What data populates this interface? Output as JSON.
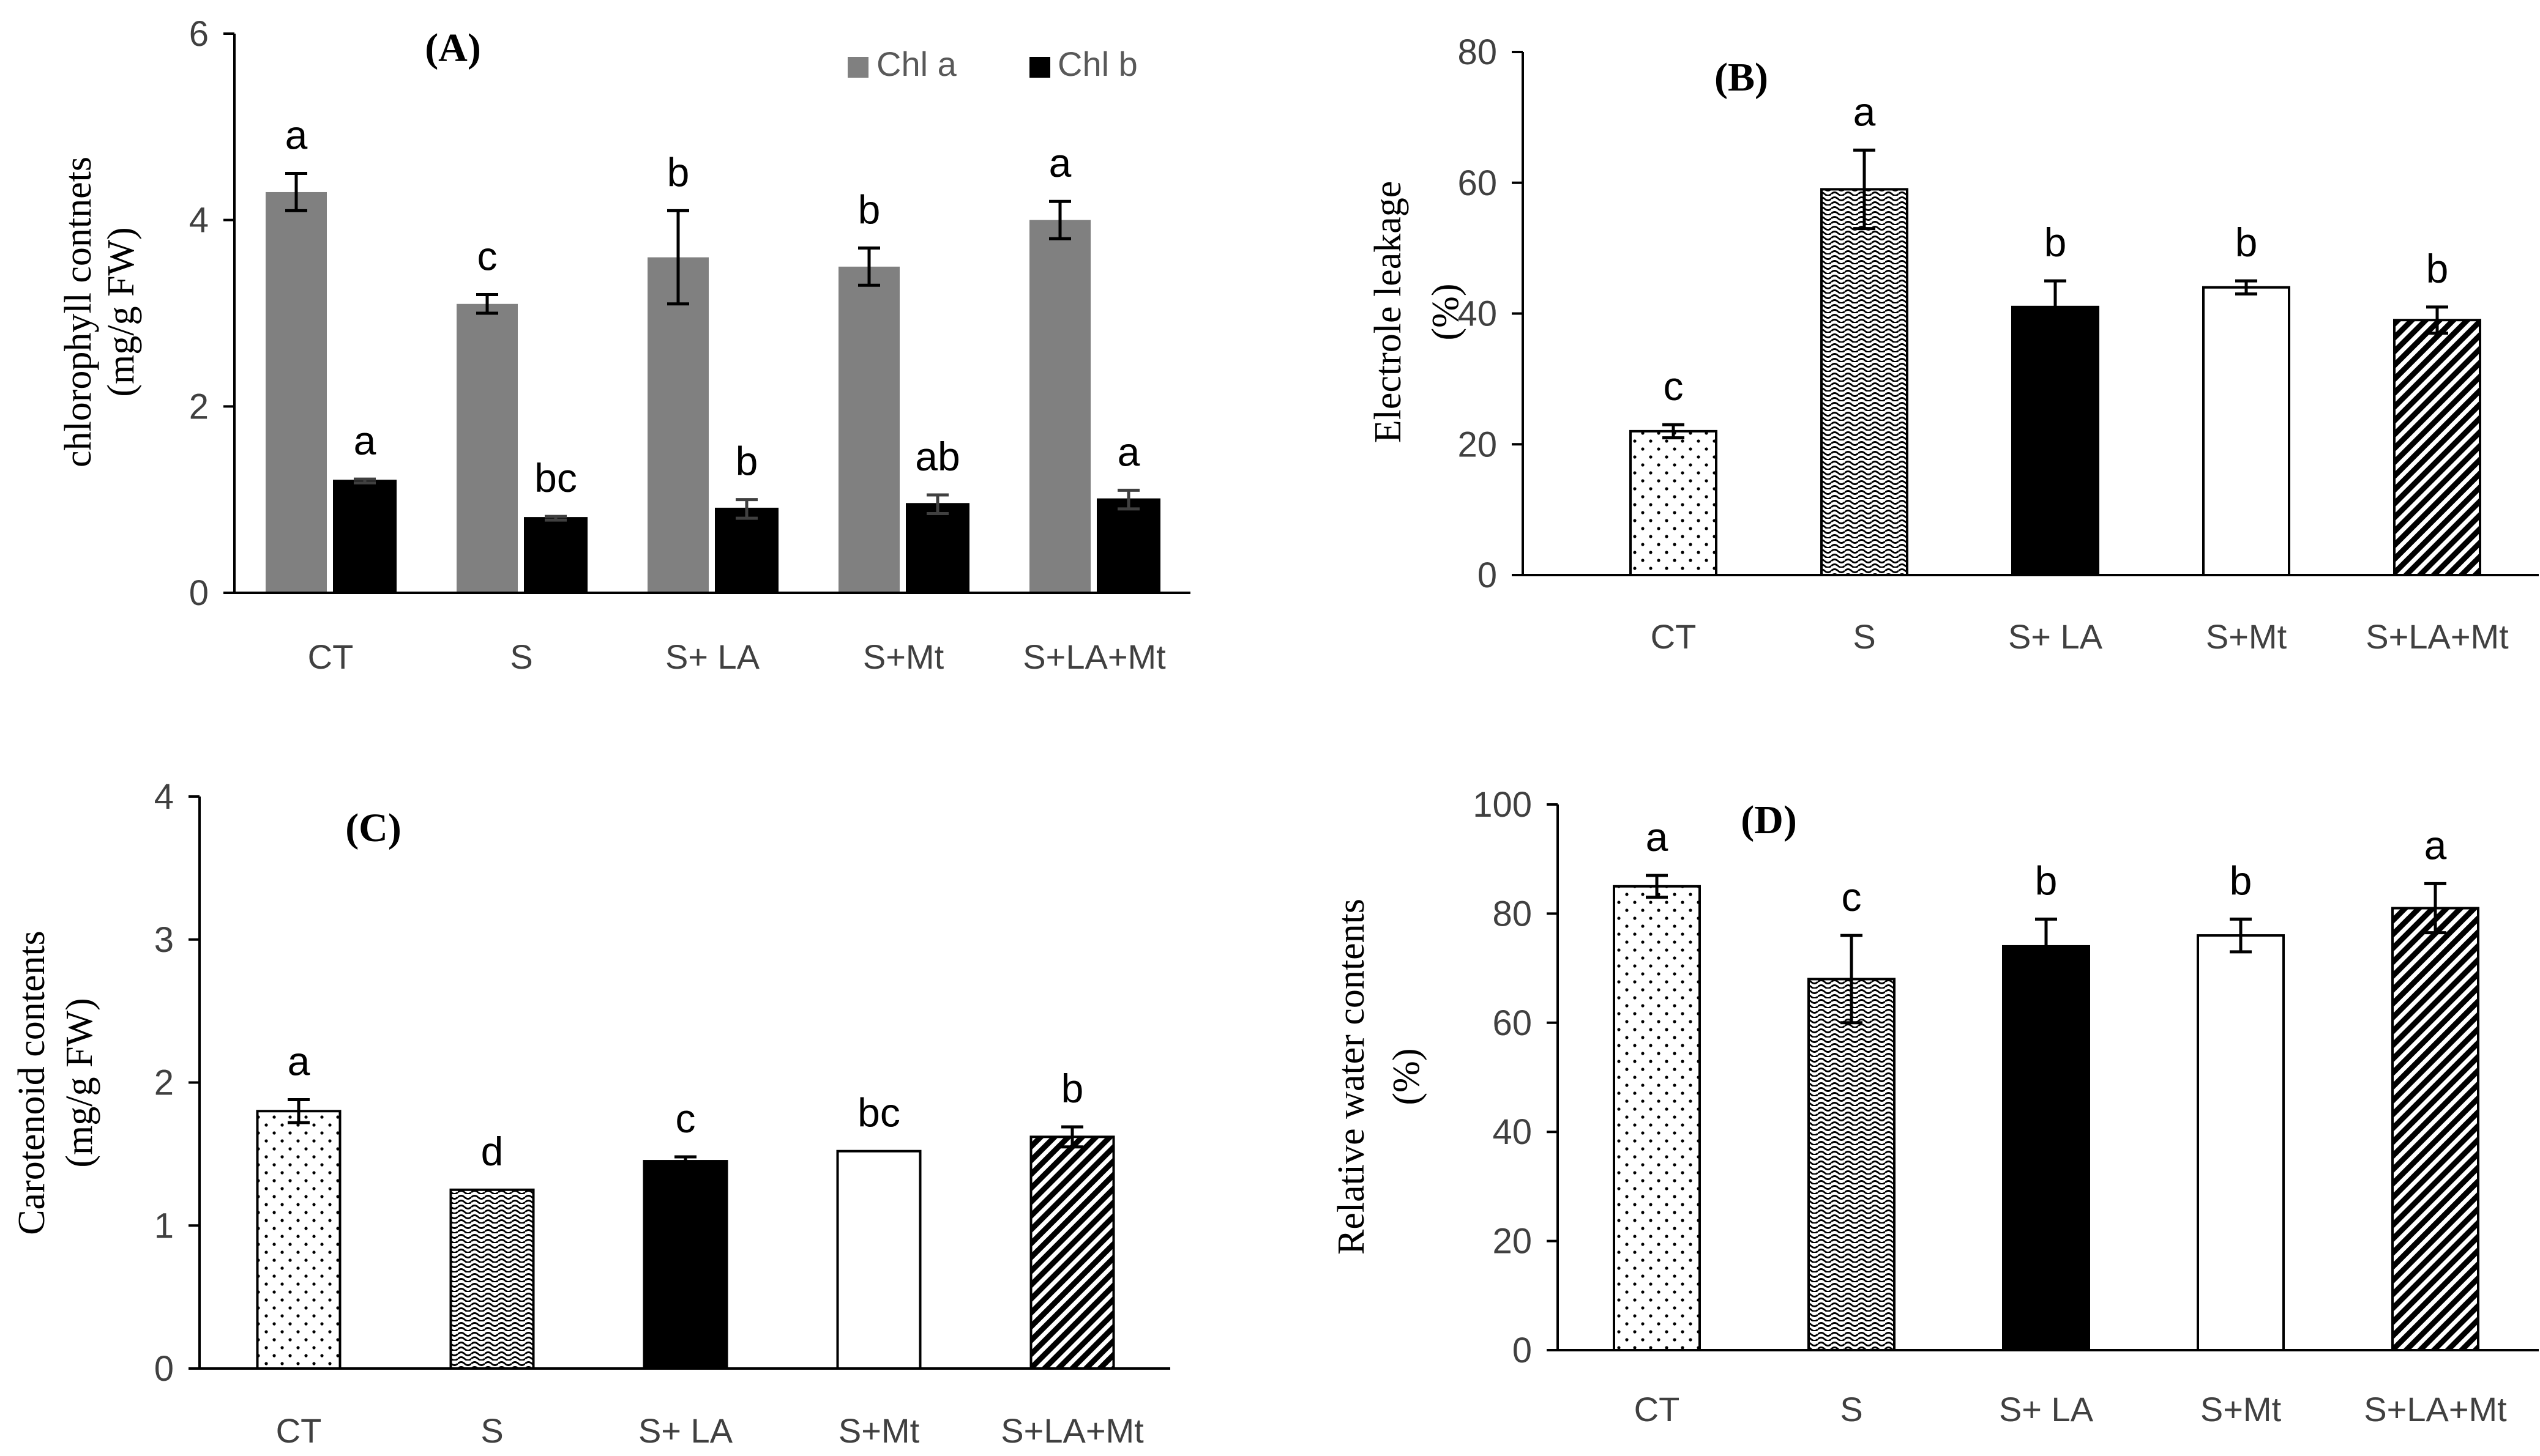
{
  "chart_data": [
    {
      "panel": "(A)",
      "type": "bar",
      "ylabel_lines": [
        "chlorophyll contnets",
        "(mg/g FW)"
      ],
      "xlabel": "",
      "ylim": [
        0,
        6
      ],
      "yticks": [
        0,
        2,
        4,
        6
      ],
      "categories": [
        "CT",
        "S",
        "S+ LA",
        "S+Mt",
        "S+LA+Mt"
      ],
      "series": [
        {
          "name": "Chl a",
          "color": "#808080",
          "pattern": "solid",
          "values": [
            4.3,
            3.1,
            3.6,
            3.5,
            4.0
          ],
          "errors": [
            0.2,
            0.1,
            0.5,
            0.2,
            0.2
          ],
          "letters": [
            "a",
            "c",
            "b",
            "b",
            "a"
          ]
        },
        {
          "name": "Chl b",
          "color": "#000000",
          "pattern": "solid",
          "values": [
            1.2,
            0.8,
            0.9,
            0.95,
            1.0
          ],
          "errors": [
            0.02,
            0.02,
            0.1,
            0.1,
            0.1
          ],
          "letters": [
            "a",
            "bc",
            "b",
            "ab",
            "a"
          ]
        }
      ],
      "legend": "top-right"
    },
    {
      "panel": "(B)",
      "type": "bar",
      "ylabel_lines": [
        "Electrole leakage",
        "(%)"
      ],
      "xlabel": "",
      "ylim": [
        0,
        80
      ],
      "yticks": [
        0,
        20,
        40,
        60,
        80
      ],
      "categories": [
        "CT",
        "S",
        "S+ LA",
        "S+Mt",
        "S+LA+Mt"
      ],
      "values": [
        22,
        59,
        41,
        44,
        39
      ],
      "errors": [
        1,
        6,
        4,
        1,
        2
      ],
      "letters": [
        "c",
        "a",
        "b",
        "b",
        "b"
      ],
      "patterns": [
        "dots",
        "waves",
        "black",
        "white",
        "hatch"
      ]
    },
    {
      "panel": "(C)",
      "type": "bar",
      "ylabel_lines": [
        "Carotenoid contents",
        "(mg/g FW)"
      ],
      "xlabel": "",
      "ylim": [
        0,
        4
      ],
      "yticks": [
        0,
        1,
        2,
        3,
        4
      ],
      "categories": [
        "CT",
        "S",
        "S+ LA",
        "S+Mt",
        "S+LA+Mt"
      ],
      "values": [
        1.8,
        1.25,
        1.45,
        1.52,
        1.62
      ],
      "errors": [
        0.08,
        0.0,
        0.03,
        0.0,
        0.07
      ],
      "letters": [
        "a",
        "d",
        "c",
        "bc",
        "b"
      ],
      "patterns": [
        "dots",
        "waves",
        "black",
        "white",
        "hatch"
      ]
    },
    {
      "panel": "(D)",
      "type": "bar",
      "ylabel_lines": [
        "Relative water contents",
        "(%)"
      ],
      "xlabel": "",
      "ylim": [
        0,
        100
      ],
      "yticks": [
        0,
        20,
        40,
        60,
        80,
        100
      ],
      "categories": [
        "CT",
        "S",
        "S+ LA",
        "S+Mt",
        "S+LA+Mt"
      ],
      "values": [
        85,
        68,
        74,
        76,
        81
      ],
      "errors": [
        2,
        8,
        5,
        3,
        4.5
      ],
      "letters": [
        "a",
        "c",
        "b",
        "b",
        "a"
      ],
      "patterns": [
        "dots",
        "waves",
        "black",
        "white",
        "hatch"
      ]
    }
  ]
}
